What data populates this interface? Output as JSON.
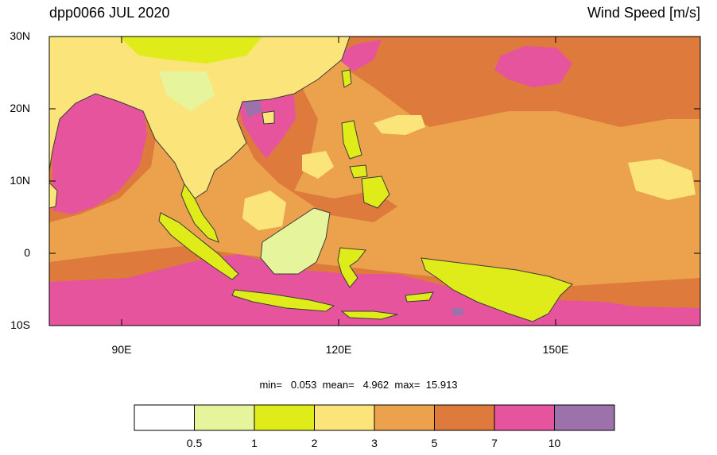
{
  "header": {
    "title_left": "dpp0066 JUL 2020",
    "title_right": "Wind Speed [m/s]"
  },
  "map": {
    "lat_labels": [
      "30N",
      "20N",
      "10N",
      "0",
      "10S"
    ],
    "lon_labels": [
      "90E",
      "120E",
      "150E"
    ],
    "lon_range": [
      80,
      170
    ],
    "lat_range": [
      -10,
      30
    ]
  },
  "stats": {
    "min_label": "min=",
    "min_value": "0.053",
    "mean_label": "mean=",
    "mean_value": "4.962",
    "max_label": "max=",
    "max_value": "15.913"
  },
  "colorbar": {
    "colors": [
      "#ffffff",
      "#e6f59c",
      "#dfec1a",
      "#fbe57a",
      "#eca24c",
      "#dd7a3c",
      "#e6549e",
      "#9d71a9"
    ],
    "labels": [
      "0.5",
      "1",
      "2",
      "3",
      "5",
      "7",
      "10"
    ]
  }
}
